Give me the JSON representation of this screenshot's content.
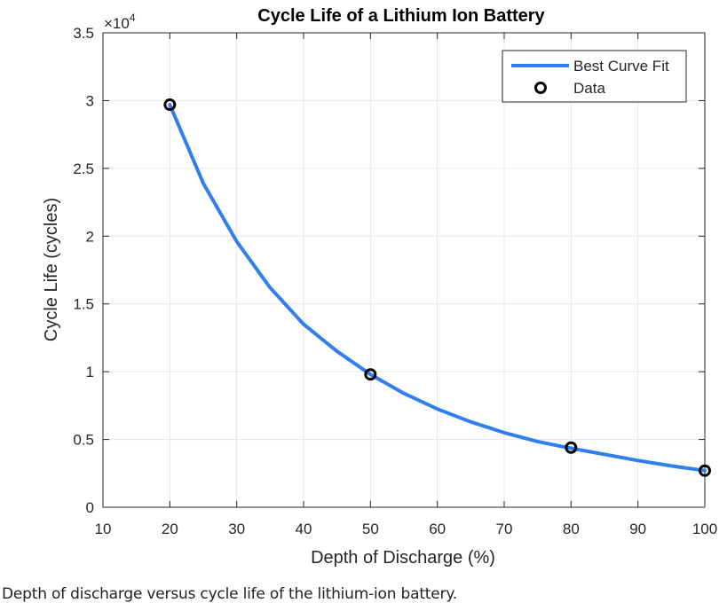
{
  "chart_data": {
    "type": "line",
    "title": "Cycle Life of a Lithium Ion Battery",
    "xlabel": "Depth of Discharge (%)",
    "ylabel": "Cycle Life (cycles)",
    "y_exponent_label": "×10",
    "y_exponent_power": "4",
    "xlim": [
      10,
      100
    ],
    "ylim": [
      0,
      35000
    ],
    "x_ticks": [
      10,
      20,
      30,
      40,
      50,
      60,
      70,
      80,
      90,
      100
    ],
    "x_tick_labels": [
      "10",
      "20",
      "30",
      "40",
      "50",
      "60",
      "70",
      "80",
      "90",
      "100"
    ],
    "y_ticks": [
      0,
      5000,
      10000,
      15000,
      20000,
      25000,
      30000,
      35000
    ],
    "y_tick_labels": [
      "0",
      "0.5",
      "1",
      "1.5",
      "2",
      "2.5",
      "3",
      "3.5"
    ],
    "grid": true,
    "legend_position": "top-right",
    "series": [
      {
        "name": "Best Curve Fit",
        "style": "line",
        "color": "#2f7ff0",
        "x": [
          20,
          25,
          30,
          35,
          40,
          45,
          50,
          55,
          60,
          65,
          70,
          75,
          80,
          85,
          90,
          95,
          100
        ],
        "values": [
          29700,
          23900,
          19600,
          16200,
          13500,
          11500,
          9800,
          8400,
          7250,
          6300,
          5500,
          4850,
          4350,
          3900,
          3450,
          3050,
          2700
        ]
      },
      {
        "name": "Data",
        "style": "markers",
        "color": "#000000",
        "x": [
          20,
          50,
          80,
          100
        ],
        "values": [
          29700,
          9800,
          4400,
          2700
        ]
      }
    ]
  },
  "caption": "Depth of discharge versus cycle life of the lithium-ion battery."
}
